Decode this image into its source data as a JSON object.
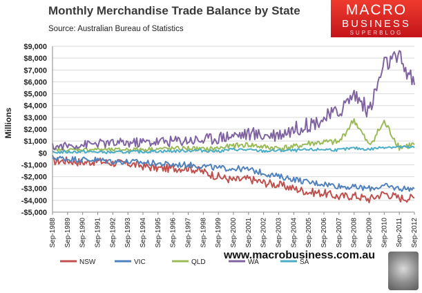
{
  "title": "Monthly Merchandise Trade Balance by State",
  "subtitle": "Source:  Australian Bureau of Statistics",
  "logo": {
    "line1": "MACRO",
    "line2": "BUSINESS",
    "line3": "SUPERBLOG"
  },
  "website": "www.macrobusiness.com.au",
  "chart_data": {
    "type": "line",
    "ylabel": "Millions",
    "xlabel": "",
    "ylim": [
      -5000,
      9000
    ],
    "y_ticks": [
      -5000,
      -4000,
      -3000,
      -2000,
      -1000,
      0,
      1000,
      2000,
      3000,
      4000,
      5000,
      6000,
      7000,
      8000,
      9000
    ],
    "y_tick_labels": [
      "-$5,000",
      "-$4,000",
      "-$3,000",
      "-$2,000",
      "-$1,000",
      "$0",
      "$1,000",
      "$2,000",
      "$3,000",
      "$4,000",
      "$5,000",
      "$6,000",
      "$7,000",
      "$8,000",
      "$9,000"
    ],
    "x_tick_labels": [
      "Sep-1988",
      "Sep-1989",
      "Sep-1990",
      "Sep-1991",
      "Sep-1992",
      "Sep-1993",
      "Sep-1994",
      "Sep-1995",
      "Sep-1996",
      "Sep-1997",
      "Sep-1998",
      "Sep-1999",
      "Sep-2000",
      "Sep-2001",
      "Sep-2002",
      "Sep-2003",
      "Sep-2004",
      "Sep-2005",
      "Sep-2006",
      "Sep-2007",
      "Sep-2008",
      "Sep-2009",
      "Sep-2010",
      "Sep-2011",
      "Sep-2012"
    ],
    "x_frequency": "monthly",
    "legend_position": "bottom",
    "grid": "horizontal",
    "series": [
      {
        "name": "NSW",
        "color": "#c0504d",
        "x": [
          "Sep-1988",
          "Sep-1989",
          "Sep-1990",
          "Sep-1991",
          "Sep-1992",
          "Sep-1993",
          "Sep-1994",
          "Sep-1995",
          "Sep-1996",
          "Sep-1997",
          "Sep-1998",
          "Sep-1999",
          "Sep-2000",
          "Sep-2001",
          "Sep-2002",
          "Sep-2003",
          "Sep-2004",
          "Sep-2005",
          "Sep-2006",
          "Sep-2007",
          "Sep-2008",
          "Sep-2009",
          "Sep-2010",
          "Sep-2011",
          "Sep-2012"
        ],
        "values": [
          -700,
          -650,
          -800,
          -700,
          -850,
          -900,
          -1100,
          -1300,
          -1300,
          -1250,
          -1600,
          -2000,
          -2300,
          -2200,
          -2500,
          -2700,
          -3000,
          -3300,
          -3400,
          -3700,
          -3600,
          -3900,
          -3400,
          -3800,
          -3800
        ]
      },
      {
        "name": "VIC",
        "color": "#4f81bd",
        "x": [
          "Sep-1988",
          "Sep-1989",
          "Sep-1990",
          "Sep-1991",
          "Sep-1992",
          "Sep-1993",
          "Sep-1994",
          "Sep-1995",
          "Sep-1996",
          "Sep-1997",
          "Sep-1998",
          "Sep-1999",
          "Sep-2000",
          "Sep-2001",
          "Sep-2002",
          "Sep-2003",
          "Sep-2004",
          "Sep-2005",
          "Sep-2006",
          "Sep-2007",
          "Sep-2008",
          "Sep-2009",
          "Sep-2010",
          "Sep-2011",
          "Sep-2012"
        ],
        "values": [
          -400,
          -500,
          -550,
          -600,
          -700,
          -750,
          -800,
          -900,
          -1000,
          -1000,
          -1100,
          -1300,
          -1300,
          -1400,
          -1700,
          -2000,
          -2200,
          -2500,
          -2600,
          -2800,
          -2900,
          -3000,
          -2800,
          -3000,
          -3000
        ]
      },
      {
        "name": "QLD",
        "color": "#9bbb59",
        "x": [
          "Sep-1988",
          "Sep-1989",
          "Sep-1990",
          "Sep-1991",
          "Sep-1992",
          "Sep-1993",
          "Sep-1994",
          "Sep-1995",
          "Sep-1996",
          "Sep-1997",
          "Sep-1998",
          "Sep-1999",
          "Sep-2000",
          "Sep-2001",
          "Sep-2002",
          "Sep-2003",
          "Sep-2004",
          "Sep-2005",
          "Sep-2006",
          "Sep-2007",
          "Sep-2008",
          "Sep-2009",
          "Sep-2010",
          "Sep-2011",
          "Sep-2012"
        ],
        "values": [
          300,
          250,
          300,
          300,
          250,
          300,
          300,
          350,
          350,
          400,
          300,
          400,
          600,
          700,
          500,
          400,
          500,
          800,
          900,
          900,
          2800,
          600,
          2600,
          500,
          700
        ]
      },
      {
        "name": "WA",
        "color": "#8064a2",
        "x": [
          "Sep-1988",
          "Sep-1989",
          "Sep-1990",
          "Sep-1991",
          "Sep-1992",
          "Sep-1993",
          "Sep-1994",
          "Sep-1995",
          "Sep-1996",
          "Sep-1997",
          "Sep-1998",
          "Sep-1999",
          "Sep-2000",
          "Sep-2001",
          "Sep-2002",
          "Sep-2003",
          "Sep-2004",
          "Sep-2005",
          "Sep-2006",
          "Sep-2007",
          "Sep-2008",
          "Sep-2009",
          "Sep-2010",
          "Sep-2011",
          "Sep-2012"
        ],
        "values": [
          500,
          600,
          700,
          800,
          800,
          850,
          900,
          950,
          1000,
          1100,
          1100,
          1300,
          1500,
          1600,
          1500,
          1600,
          2000,
          2400,
          2900,
          3500,
          5000,
          3500,
          7500,
          8000,
          5800
        ]
      },
      {
        "name": "SA",
        "color": "#4bacc6",
        "x": [
          "Sep-1988",
          "Sep-1989",
          "Sep-1990",
          "Sep-1991",
          "Sep-1992",
          "Sep-1993",
          "Sep-1994",
          "Sep-1995",
          "Sep-1996",
          "Sep-1997",
          "Sep-1998",
          "Sep-1999",
          "Sep-2000",
          "Sep-2001",
          "Sep-2002",
          "Sep-2003",
          "Sep-2004",
          "Sep-2005",
          "Sep-2006",
          "Sep-2007",
          "Sep-2008",
          "Sep-2009",
          "Sep-2010",
          "Sep-2011",
          "Sep-2012"
        ],
        "values": [
          50,
          80,
          100,
          80,
          50,
          80,
          100,
          150,
          150,
          200,
          200,
          150,
          300,
          250,
          150,
          200,
          200,
          250,
          300,
          250,
          400,
          300,
          500,
          500,
          450
        ]
      }
    ]
  }
}
